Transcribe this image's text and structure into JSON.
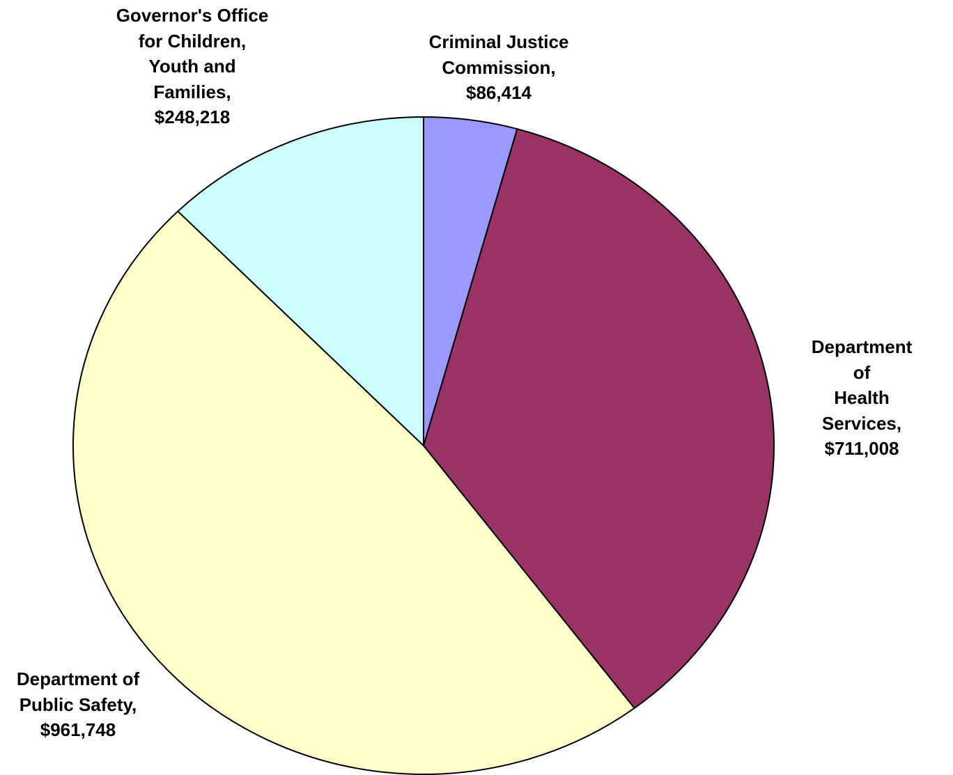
{
  "chart_data": {
    "type": "pie",
    "categories": [
      "Criminal Justice\nCommission,",
      "Department of\nHealth Services,",
      "Department of\nPublic Safety,",
      "Governor's Office\nfor Children,\nYouth and\nFamilies,"
    ],
    "values": [
      86414,
      711008,
      961748,
      248218
    ],
    "value_labels": [
      "$86,414",
      "$711,008",
      "$961,748",
      "$248,218"
    ],
    "colors": [
      "#9999ff",
      "#993366",
      "#ffffcc",
      "#ccffff"
    ]
  }
}
